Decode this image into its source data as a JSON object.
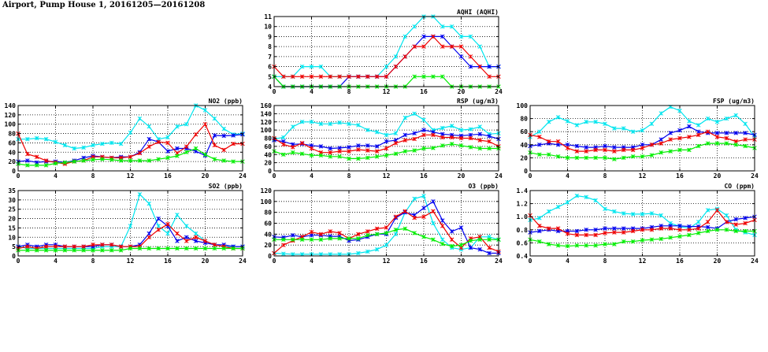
{
  "header": {
    "title": "Airport, Pump House 1, 20161205—20161208"
  },
  "colors": {
    "series_a": "#0000ee",
    "series_b": "#ee0000",
    "series_c": "#00ee00",
    "series_d": "#00e5ee"
  },
  "chart_data": [
    {
      "id": "aqhi",
      "type": "line",
      "title": "AQHI (AQHI)",
      "xlim": [
        0,
        24
      ],
      "xticks": [
        0,
        4,
        8,
        12,
        16,
        20,
        24
      ],
      "ylim": [
        4,
        11
      ],
      "yticks": [
        4,
        5,
        6,
        7,
        8,
        9,
        10,
        11
      ],
      "grid": true,
      "x": [
        0,
        1,
        2,
        3,
        4,
        5,
        6,
        7,
        8,
        9,
        10,
        11,
        12,
        13,
        14,
        15,
        16,
        17,
        18,
        19,
        20,
        21,
        22,
        23,
        24
      ],
      "series": [
        {
          "color": "#00e5ee",
          "values": [
            5,
            5,
            5,
            6,
            6,
            6,
            5,
            5,
            5,
            5,
            5,
            5,
            6,
            7,
            9,
            10,
            11,
            11,
            10,
            10,
            9,
            9,
            8,
            6,
            6
          ]
        },
        {
          "color": "#0000ee",
          "values": [
            5,
            4,
            4,
            4,
            4,
            4,
            4,
            4,
            5,
            5,
            5,
            5,
            5,
            6,
            7,
            8,
            9,
            9,
            9,
            8,
            7,
            6,
            6,
            6,
            6
          ]
        },
        {
          "color": "#ee0000",
          "values": [
            6,
            5,
            5,
            5,
            5,
            5,
            5,
            5,
            5,
            5,
            5,
            5,
            5,
            6,
            7,
            8,
            8,
            9,
            8,
            8,
            8,
            7,
            6,
            5,
            5
          ]
        },
        {
          "color": "#00ee00",
          "values": [
            5,
            4,
            4,
            4,
            4,
            4,
            4,
            4,
            4,
            4,
            4,
            4,
            4,
            4,
            4,
            5,
            5,
            5,
            5,
            4,
            4,
            4,
            4,
            4,
            4
          ]
        }
      ]
    },
    {
      "id": "no2",
      "type": "line",
      "title": "NO2 (ppb)",
      "xlim": [
        0,
        24
      ],
      "xticks": [
        0,
        4,
        8,
        12,
        16,
        20,
        24
      ],
      "ylim": [
        0,
        140
      ],
      "yticks": [
        0,
        20,
        40,
        60,
        80,
        100,
        120,
        140
      ],
      "grid": true,
      "x": [
        0,
        1,
        2,
        3,
        4,
        5,
        6,
        7,
        8,
        9,
        10,
        11,
        12,
        13,
        14,
        15,
        16,
        17,
        18,
        19,
        20,
        21,
        22,
        23,
        24
      ],
      "series": [
        {
          "color": "#00e5ee",
          "values": [
            68,
            68,
            70,
            68,
            62,
            55,
            48,
            50,
            55,
            58,
            60,
            58,
            82,
            112,
            95,
            68,
            72,
            95,
            100,
            140,
            130,
            112,
            90,
            78,
            80
          ]
        },
        {
          "color": "#0000ee",
          "values": [
            20,
            22,
            18,
            20,
            20,
            18,
            22,
            28,
            32,
            30,
            28,
            30,
            30,
            40,
            68,
            62,
            42,
            48,
            48,
            42,
            33,
            76,
            75,
            76,
            78
          ]
        },
        {
          "color": "#ee0000",
          "values": [
            80,
            36,
            30,
            22,
            18,
            15,
            20,
            22,
            30,
            30,
            28,
            28,
            30,
            38,
            52,
            62,
            60,
            38,
            52,
            78,
            100,
            55,
            45,
            58,
            58
          ]
        },
        {
          "color": "#00ee00",
          "values": [
            15,
            12,
            12,
            12,
            16,
            18,
            20,
            22,
            24,
            25,
            24,
            22,
            22,
            22,
            22,
            25,
            28,
            32,
            40,
            48,
            35,
            25,
            22,
            20,
            20
          ]
        }
      ]
    },
    {
      "id": "rsp",
      "type": "line",
      "title": "RSP (ug/m3)",
      "xlim": [
        0,
        24
      ],
      "xticks": [
        0,
        4,
        8,
        12,
        16,
        20,
        24
      ],
      "ylim": [
        0,
        160
      ],
      "yticks": [
        0,
        20,
        40,
        60,
        80,
        100,
        120,
        140,
        160
      ],
      "grid": true,
      "x": [
        0,
        1,
        2,
        3,
        4,
        5,
        6,
        7,
        8,
        9,
        10,
        11,
        12,
        13,
        14,
        15,
        16,
        17,
        18,
        19,
        20,
        21,
        22,
        23,
        24
      ],
      "series": [
        {
          "color": "#00e5ee",
          "values": [
            78,
            82,
            108,
            120,
            120,
            115,
            115,
            118,
            115,
            112,
            100,
            95,
            88,
            92,
            130,
            140,
            125,
            100,
            105,
            110,
            100,
            102,
            108,
            90,
            92
          ]
        },
        {
          "color": "#0000ee",
          "values": [
            75,
            72,
            65,
            66,
            62,
            60,
            55,
            56,
            58,
            62,
            62,
            60,
            72,
            75,
            88,
            92,
            100,
            95,
            90,
            88,
            86,
            88,
            90,
            85,
            78
          ]
        },
        {
          "color": "#ee0000",
          "values": [
            80,
            65,
            58,
            68,
            55,
            45,
            45,
            48,
            48,
            52,
            50,
            48,
            55,
            68,
            75,
            78,
            88,
            88,
            82,
            82,
            80,
            80,
            75,
            72,
            60
          ]
        },
        {
          "color": "#00ee00",
          "values": [
            48,
            40,
            45,
            42,
            38,
            38,
            35,
            35,
            30,
            30,
            32,
            35,
            38,
            42,
            48,
            50,
            55,
            56,
            62,
            66,
            62,
            58,
            55,
            55,
            55
          ]
        }
      ]
    },
    {
      "id": "fsp",
      "type": "line",
      "title": "FSP (ug/m3)",
      "xlim": [
        0,
        24
      ],
      "xticks": [
        0,
        4,
        8,
        12,
        16,
        20,
        24
      ],
      "ylim": [
        0,
        100
      ],
      "yticks": [
        0,
        20,
        40,
        60,
        80,
        100
      ],
      "grid": true,
      "x": [
        0,
        1,
        2,
        3,
        4,
        5,
        6,
        7,
        8,
        9,
        10,
        11,
        12,
        13,
        14,
        15,
        16,
        17,
        18,
        19,
        20,
        21,
        22,
        23,
        24
      ],
      "series": [
        {
          "color": "#00e5ee",
          "values": [
            52,
            60,
            75,
            82,
            76,
            70,
            75,
            75,
            72,
            65,
            65,
            60,
            62,
            72,
            88,
            98,
            92,
            76,
            70,
            80,
            75,
            80,
            85,
            72,
            52
          ]
        },
        {
          "color": "#0000ee",
          "values": [
            38,
            40,
            42,
            40,
            40,
            38,
            36,
            36,
            38,
            36,
            36,
            36,
            40,
            40,
            48,
            58,
            62,
            68,
            60,
            58,
            58,
            58,
            58,
            58,
            55
          ]
        },
        {
          "color": "#ee0000",
          "values": [
            55,
            52,
            45,
            45,
            35,
            30,
            30,
            32,
            32,
            30,
            32,
            32,
            35,
            40,
            42,
            48,
            50,
            52,
            55,
            60,
            52,
            50,
            45,
            48,
            48
          ]
        },
        {
          "color": "#00ee00",
          "values": [
            28,
            25,
            25,
            22,
            20,
            20,
            20,
            20,
            20,
            18,
            20,
            22,
            22,
            24,
            28,
            30,
            32,
            32,
            38,
            42,
            42,
            42,
            40,
            38,
            35
          ]
        }
      ]
    },
    {
      "id": "so2",
      "type": "line",
      "title": "SO2 (ppb)",
      "xlim": [
        0,
        24
      ],
      "xticks": [
        0,
        4,
        8,
        12,
        16,
        20,
        24
      ],
      "ylim": [
        0,
        35
      ],
      "yticks": [
        0,
        5,
        10,
        15,
        20,
        25,
        30,
        35
      ],
      "grid": true,
      "x": [
        0,
        1,
        2,
        3,
        4,
        5,
        6,
        7,
        8,
        9,
        10,
        11,
        12,
        13,
        14,
        15,
        16,
        17,
        18,
        19,
        20,
        21,
        22,
        23,
        24
      ],
      "series": [
        {
          "color": "#00e5ee",
          "values": [
            5,
            4,
            4,
            4,
            4,
            4,
            4,
            4,
            4,
            5,
            5,
            5,
            16,
            33,
            28,
            16,
            12,
            22,
            16,
            12,
            8,
            6,
            5,
            5,
            5
          ]
        },
        {
          "color": "#0000ee",
          "values": [
            5,
            6,
            5,
            6,
            6,
            5,
            5,
            5,
            5,
            6,
            6,
            5,
            5,
            6,
            12,
            20,
            16,
            8,
            10,
            8,
            7,
            6,
            6,
            5,
            5
          ]
        },
        {
          "color": "#ee0000",
          "values": [
            4,
            5,
            4,
            5,
            5,
            5,
            5,
            5,
            6,
            6,
            6,
            5,
            5,
            5,
            10,
            14,
            17,
            12,
            8,
            10,
            8,
            6,
            5,
            4,
            4
          ]
        },
        {
          "color": "#00ee00",
          "values": [
            3,
            3,
            3,
            3,
            3,
            3,
            3,
            3,
            3,
            3,
            3,
            3,
            4,
            4,
            4,
            4,
            4,
            4,
            4,
            4,
            4,
            4,
            4,
            4,
            4
          ]
        }
      ]
    },
    {
      "id": "o3",
      "type": "line",
      "title": "O3 (ppb)",
      "xlim": [
        0,
        24
      ],
      "xticks": [
        0,
        4,
        8,
        12,
        16,
        20,
        24
      ],
      "ylim": [
        0,
        120
      ],
      "yticks": [
        0,
        20,
        40,
        60,
        80,
        100,
        120
      ],
      "grid": true,
      "x": [
        0,
        1,
        2,
        3,
        4,
        5,
        6,
        7,
        8,
        9,
        10,
        11,
        12,
        13,
        14,
        15,
        16,
        17,
        18,
        19,
        20,
        21,
        22,
        23,
        24
      ],
      "series": [
        {
          "color": "#00e5ee",
          "values": [
            5,
            4,
            3,
            3,
            3,
            3,
            3,
            3,
            3,
            5,
            8,
            12,
            20,
            40,
            80,
            105,
            110,
            60,
            30,
            15,
            12,
            15,
            35,
            35,
            30
          ]
        },
        {
          "color": "#0000ee",
          "values": [
            35,
            34,
            38,
            35,
            38,
            38,
            36,
            36,
            28,
            30,
            35,
            40,
            40,
            70,
            80,
            75,
            88,
            100,
            65,
            45,
            52,
            15,
            12,
            5,
            5
          ]
        },
        {
          "color": "#ee0000",
          "values": [
            5,
            20,
            28,
            35,
            44,
            40,
            45,
            42,
            32,
            40,
            45,
            50,
            52,
            72,
            82,
            70,
            72,
            82,
            55,
            30,
            15,
            32,
            35,
            15,
            8
          ]
        },
        {
          "color": "#00ee00",
          "values": [
            30,
            30,
            30,
            30,
            30,
            30,
            32,
            32,
            32,
            32,
            38,
            40,
            42,
            48,
            50,
            42,
            35,
            30,
            22,
            18,
            20,
            28,
            30,
            30,
            30
          ]
        }
      ]
    },
    {
      "id": "co",
      "type": "line",
      "title": "CO (ppm)",
      "xlim": [
        0,
        24
      ],
      "xticks": [
        0,
        4,
        8,
        12,
        16,
        20,
        24
      ],
      "ylim": [
        0.4,
        1.4
      ],
      "yticks": [
        0.4,
        0.6,
        0.8,
        1.0,
        1.2,
        1.4
      ],
      "grid": true,
      "x": [
        0,
        1,
        2,
        3,
        4,
        5,
        6,
        7,
        8,
        9,
        10,
        11,
        12,
        13,
        14,
        15,
        16,
        17,
        18,
        19,
        20,
        21,
        22,
        23,
        24
      ],
      "series": [
        {
          "color": "#00e5ee",
          "values": [
            0.95,
            0.98,
            1.08,
            1.15,
            1.22,
            1.32,
            1.3,
            1.25,
            1.12,
            1.08,
            1.05,
            1.04,
            1.04,
            1.05,
            1.02,
            0.9,
            0.85,
            0.82,
            0.92,
            1.1,
            1.12,
            1.02,
            0.8,
            0.76,
            0.72
          ]
        },
        {
          "color": "#0000ee",
          "values": [
            0.76,
            0.78,
            0.8,
            0.78,
            0.78,
            0.78,
            0.8,
            0.8,
            0.82,
            0.82,
            0.82,
            0.82,
            0.82,
            0.84,
            0.86,
            0.86,
            0.86,
            0.85,
            0.85,
            0.84,
            0.82,
            0.92,
            0.96,
            0.98,
            1.0
          ]
        },
        {
          "color": "#ee0000",
          "values": [
            1.02,
            0.86,
            0.82,
            0.82,
            0.74,
            0.72,
            0.72,
            0.72,
            0.75,
            0.76,
            0.76,
            0.78,
            0.8,
            0.8,
            0.82,
            0.82,
            0.8,
            0.8,
            0.82,
            0.92,
            1.1,
            0.92,
            0.88,
            0.9,
            0.95
          ]
        },
        {
          "color": "#00ee00",
          "values": [
            0.65,
            0.62,
            0.58,
            0.56,
            0.55,
            0.56,
            0.56,
            0.56,
            0.58,
            0.58,
            0.62,
            0.62,
            0.64,
            0.65,
            0.66,
            0.68,
            0.7,
            0.72,
            0.75,
            0.78,
            0.8,
            0.8,
            0.78,
            0.78,
            0.78
          ]
        }
      ]
    }
  ]
}
